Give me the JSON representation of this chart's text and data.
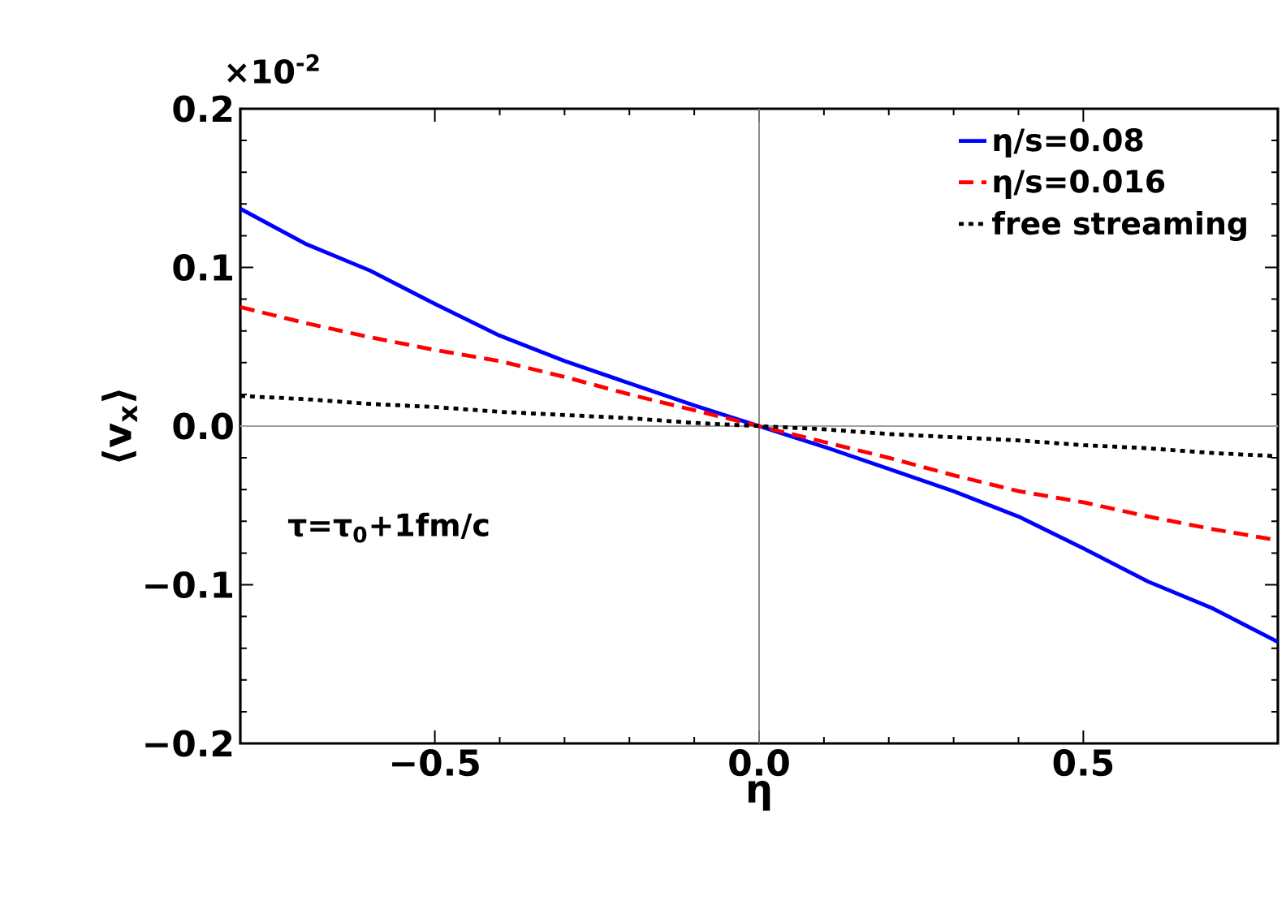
{
  "chart_data": {
    "type": "line",
    "xlabel": "η",
    "ylabel": "⟨v$_{x}$⟩",
    "x": [
      -0.8,
      -0.7,
      -0.6,
      -0.5,
      -0.4,
      -0.3,
      -0.2,
      -0.1,
      0,
      0.1,
      0.2,
      0.3,
      0.4,
      0.5,
      0.6,
      0.7,
      0.8
    ],
    "series": [
      {
        "name": "η/s=0.08",
        "color": "#0000ff",
        "line_style": "solid",
        "values": [
          0.137,
          0.115,
          0.098,
          0.077,
          0.057,
          0.041,
          0.027,
          0.013,
          0,
          -0.013,
          -0.027,
          -0.041,
          -0.057,
          -0.077,
          -0.098,
          -0.115,
          -0.136
        ]
      },
      {
        "name": "η/s=0.016",
        "color": "#ff0000",
        "line_style": "dashed",
        "values": [
          0.075,
          0.065,
          0.056,
          0.048,
          0.041,
          0.031,
          0.02,
          0.01,
          0,
          -0.01,
          -0.02,
          -0.031,
          -0.041,
          -0.048,
          -0.057,
          -0.065,
          -0.072
        ]
      },
      {
        "name": "free streaming",
        "color": "#000000",
        "line_style": "dotted",
        "values": [
          0.019,
          0.017,
          0.014,
          0.012,
          0.009,
          0.007,
          0.005,
          0.002,
          0,
          -0.002,
          -0.005,
          -0.007,
          -0.009,
          -0.012,
          -0.014,
          -0.017,
          -0.019
        ]
      }
    ],
    "xlim": [
      -0.8,
      0.8
    ],
    "ylim": [
      -0.2,
      0.2
    ],
    "xticks": [
      {
        "value": -0.5,
        "label": "−0.5"
      },
      {
        "value": 0,
        "label": "0.0"
      },
      {
        "value": 0.5,
        "label": "0.5"
      }
    ],
    "yticks": [
      {
        "value": -0.2,
        "label": "−0.2"
      },
      {
        "value": -0.1,
        "label": "−0.1"
      },
      {
        "value": 0,
        "label": "0.0"
      },
      {
        "value": 0.1,
        "label": "0.1"
      },
      {
        "value": 0.2,
        "label": "0.2"
      }
    ],
    "ref_lines": [
      {
        "axis": "x",
        "value": 0,
        "color": "#808080"
      },
      {
        "axis": "y",
        "value": 0,
        "color": "#a0a0a0"
      }
    ],
    "annotations": [
      "×10$^{-2}$",
      "τ=τ$_{0}$+1fm/c"
    ],
    "grid": false,
    "legend": "top right",
    "marker": "none"
  }
}
